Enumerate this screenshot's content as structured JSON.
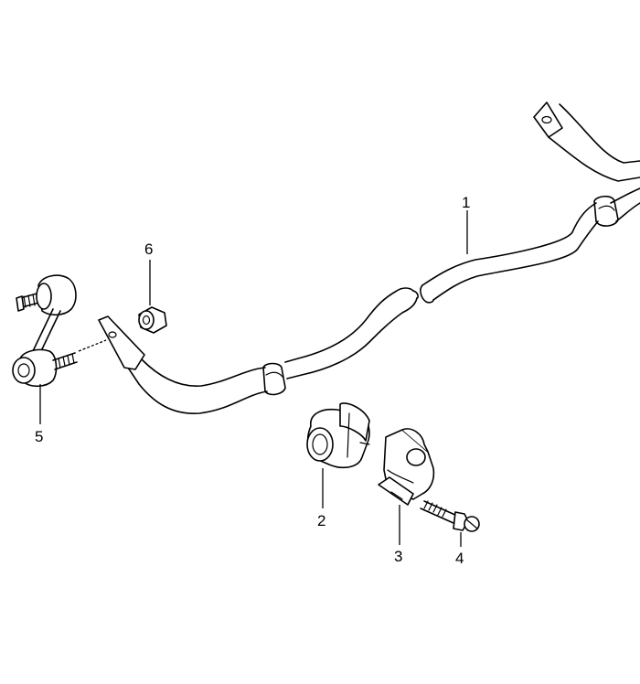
{
  "callouts": {
    "c1": "1",
    "c2": "2",
    "c3": "3",
    "c4": "4",
    "c5": "5",
    "c6": "6"
  }
}
